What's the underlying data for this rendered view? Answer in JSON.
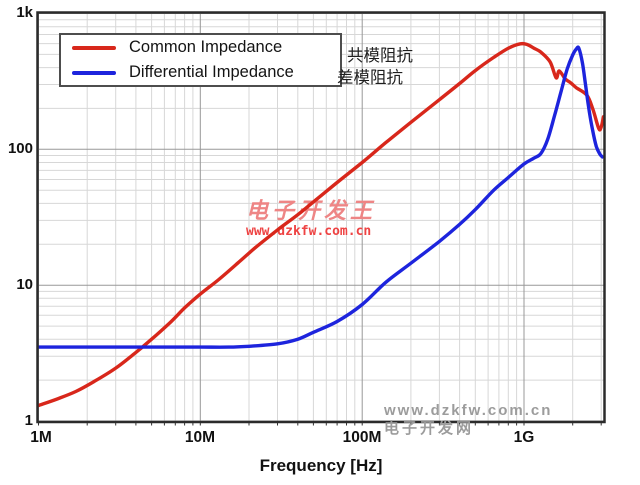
{
  "colors": {
    "grid_minor": "#d7d7d7",
    "grid_major": "#989898",
    "frame": "#2b2b2b",
    "tick": "#333333",
    "common_red": "#d8271b",
    "differential_blue": "#1d24dd"
  },
  "legend": {
    "items": [
      {
        "label": "Common Impedance",
        "label_cn": "共模阻抗",
        "color": "#d8271b"
      },
      {
        "label": "Differential Impedance",
        "label_cn": "差模阻抗",
        "color": "#1d24dd"
      }
    ]
  },
  "watermarks": {
    "center": {
      "line1": "电子开发王",
      "line2": "www.dzkfw.com.cn",
      "color1": "#ee8585",
      "color2": "#ee4343"
    },
    "bottom": {
      "line1": "www.dzkfw.com.cn",
      "line2": "电子开发网",
      "color": "#9c9c9c"
    }
  },
  "chart_data": {
    "type": "line",
    "title": "",
    "xlabel": "Frequency [Hz]",
    "ylabel": "",
    "grid": true,
    "legend_position": "top-left",
    "x_axis": {
      "scale": "log",
      "min": 1000000,
      "max": 3100000000,
      "ticks": [
        {
          "label": "1M",
          "value": 1000000
        },
        {
          "label": "10M",
          "value": 10000000
        },
        {
          "label": "100M",
          "value": 100000000
        },
        {
          "label": "1G",
          "value": 1000000000
        }
      ]
    },
    "y_axis": {
      "scale": "log",
      "min": 1,
      "max": 1000,
      "unit": "ohm",
      "ticks": [
        {
          "label": "1k",
          "value": 1000
        },
        {
          "label": "100",
          "value": 100
        },
        {
          "label": "10",
          "value": 10
        },
        {
          "label": "1",
          "value": 1
        }
      ]
    },
    "series": [
      {
        "name": "Common Impedance",
        "name_cn": "共模阻抗",
        "color": "#d8271b",
        "points": [
          [
            1000000,
            1.3
          ],
          [
            1300000,
            1.45
          ],
          [
            1700000,
            1.65
          ],
          [
            2200000,
            1.95
          ],
          [
            3000000,
            2.45
          ],
          [
            4000000,
            3.2
          ],
          [
            5000000,
            4.0
          ],
          [
            6500000,
            5.3
          ],
          [
            8000000,
            6.8
          ],
          [
            10000000,
            8.6
          ],
          [
            13000000,
            11
          ],
          [
            17000000,
            14.5
          ],
          [
            22000000,
            19
          ],
          [
            30000000,
            25.5
          ],
          [
            40000000,
            33
          ],
          [
            50000000,
            41
          ],
          [
            70000000,
            57
          ],
          [
            100000000,
            80
          ],
          [
            140000000,
            112
          ],
          [
            200000000,
            158
          ],
          [
            300000000,
            232
          ],
          [
            400000000,
            305
          ],
          [
            500000000,
            380
          ],
          [
            650000000,
            475
          ],
          [
            800000000,
            555
          ],
          [
            950000000,
            598
          ],
          [
            1050000000,
            590
          ],
          [
            1150000000,
            556
          ],
          [
            1270000000,
            520
          ],
          [
            1450000000,
            440
          ],
          [
            1580000000,
            336
          ],
          [
            1650000000,
            378
          ],
          [
            1800000000,
            330
          ],
          [
            1950000000,
            308
          ],
          [
            2100000000,
            285
          ],
          [
            2450000000,
            250
          ],
          [
            2670000000,
            196
          ],
          [
            2900000000,
            142
          ],
          [
            3000000000,
            146
          ],
          [
            3100000000,
            174
          ]
        ]
      },
      {
        "name": "Differential Impedance",
        "name_cn": "差模阻抗",
        "color": "#1d24dd",
        "points": [
          [
            1000000,
            3.5
          ],
          [
            3000000,
            3.5
          ],
          [
            6000000,
            3.5
          ],
          [
            10000000,
            3.5
          ],
          [
            15000000,
            3.5
          ],
          [
            20000000,
            3.55
          ],
          [
            30000000,
            3.7
          ],
          [
            40000000,
            4.0
          ],
          [
            50000000,
            4.5
          ],
          [
            70000000,
            5.4
          ],
          [
            100000000,
            7.2
          ],
          [
            140000000,
            10.5
          ],
          [
            200000000,
            14.5
          ],
          [
            300000000,
            21
          ],
          [
            400000000,
            28
          ],
          [
            500000000,
            36
          ],
          [
            650000000,
            50
          ],
          [
            800000000,
            62
          ],
          [
            1000000000,
            78
          ],
          [
            1150000000,
            86
          ],
          [
            1270000000,
            93
          ],
          [
            1400000000,
            118
          ],
          [
            1550000000,
            180
          ],
          [
            1700000000,
            270
          ],
          [
            1850000000,
            390
          ],
          [
            2000000000,
            495
          ],
          [
            2100000000,
            545
          ],
          [
            2180000000,
            556
          ],
          [
            2300000000,
            430
          ],
          [
            2400000000,
            300
          ],
          [
            2500000000,
            210
          ],
          [
            2650000000,
            140
          ],
          [
            2800000000,
            105
          ],
          [
            2950000000,
            92
          ],
          [
            3050000000,
            88
          ]
        ]
      }
    ]
  }
}
